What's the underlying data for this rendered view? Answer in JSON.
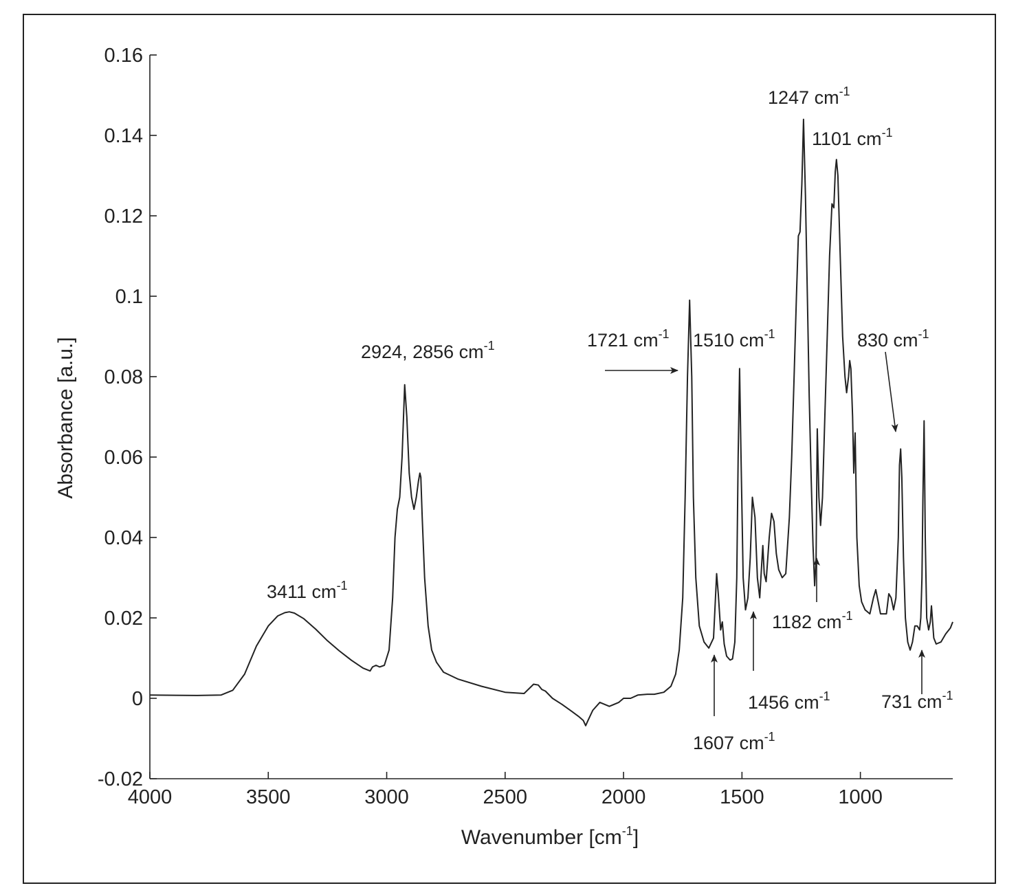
{
  "chart_data": {
    "type": "line",
    "xlabel": "Wavenumber [cm",
    "xlabel_sup": "-1",
    "xlabel_suffix": "]",
    "ylabel": "Absorbance [a.u.]",
    "xlim": [
      4000,
      610
    ],
    "ylim": [
      -0.02,
      0.16
    ],
    "x_reversed": true,
    "grid": false,
    "line_color": "#222222",
    "x_ticks": [
      4000,
      3500,
      3000,
      2500,
      2000,
      1500,
      1000
    ],
    "x_tick_labels": [
      "4000",
      "3500",
      "3000",
      "2500",
      "2000",
      "1500",
      "1000"
    ],
    "y_ticks": [
      -0.02,
      0,
      0.02,
      0.04,
      0.06,
      0.08,
      0.1,
      0.12,
      0.14,
      0.16
    ],
    "y_tick_labels": [
      "-0.02",
      "0",
      "0.02",
      "0.04",
      "0.06",
      "0.08",
      "0.1",
      "0.12",
      "0.14",
      "0.16"
    ],
    "series": [
      {
        "x": [
          4000,
          3800,
          3700,
          3650,
          3600,
          3550,
          3500,
          3460,
          3430,
          3411,
          3390,
          3350,
          3300,
          3250,
          3200,
          3150,
          3100,
          3070,
          3060,
          3045,
          3030,
          3010,
          2990,
          2975,
          2965,
          2955,
          2945,
          2935,
          2924,
          2915,
          2905,
          2895,
          2885,
          2875,
          2866,
          2860,
          2856,
          2850,
          2840,
          2825,
          2810,
          2790,
          2760,
          2700,
          2600,
          2500,
          2420,
          2380,
          2360,
          2345,
          2330,
          2300,
          2260,
          2220,
          2190,
          2170,
          2160,
          2150,
          2130,
          2100,
          2060,
          2020,
          2000,
          1970,
          1940,
          1900,
          1870,
          1830,
          1800,
          1780,
          1765,
          1750,
          1740,
          1730,
          1721,
          1712,
          1705,
          1695,
          1680,
          1660,
          1640,
          1620,
          1607,
          1600,
          1590,
          1583,
          1575,
          1565,
          1550,
          1540,
          1530,
          1522,
          1516,
          1510,
          1504,
          1495,
          1485,
          1475,
          1465,
          1456,
          1445,
          1435,
          1425,
          1418,
          1412,
          1406,
          1398,
          1385,
          1375,
          1365,
          1355,
          1345,
          1330,
          1315,
          1300,
          1290,
          1280,
          1270,
          1262,
          1255,
          1247,
          1240,
          1232,
          1224,
          1216,
          1208,
          1200,
          1193,
          1187,
          1182,
          1175,
          1168,
          1160,
          1150,
          1140,
          1130,
          1120,
          1112,
          1106,
          1101,
          1095,
          1085,
          1075,
          1065,
          1058,
          1050,
          1045,
          1040,
          1033,
          1028,
          1022,
          1015,
          1005,
          995,
          980,
          960,
          945,
          935,
          925,
          915,
          905,
          890,
          880,
          870,
          860,
          850,
          840,
          835,
          830,
          825,
          818,
          810,
          800,
          790,
          780,
          770,
          760,
          750,
          745,
          740,
          736,
          731,
          726,
          720,
          712,
          705,
          700,
          695,
          690,
          680,
          660,
          640,
          620,
          610
        ],
        "y": [
          0.0008,
          0.0007,
          0.0008,
          0.002,
          0.006,
          0.013,
          0.018,
          0.0205,
          0.0213,
          0.0215,
          0.0212,
          0.0198,
          0.0172,
          0.0143,
          0.0118,
          0.0095,
          0.0075,
          0.0068,
          0.0078,
          0.0082,
          0.0078,
          0.0082,
          0.012,
          0.025,
          0.04,
          0.047,
          0.05,
          0.06,
          0.078,
          0.07,
          0.056,
          0.05,
          0.047,
          0.05,
          0.054,
          0.056,
          0.055,
          0.045,
          0.03,
          0.018,
          0.012,
          0.009,
          0.0065,
          0.0048,
          0.003,
          0.0015,
          0.0012,
          0.0035,
          0.0033,
          0.0022,
          0.0018,
          0.0,
          -0.0015,
          -0.0032,
          -0.0045,
          -0.0055,
          -0.0068,
          -0.0055,
          -0.003,
          -0.001,
          -0.002,
          -0.001,
          0.0,
          0.0,
          0.0008,
          0.001,
          0.001,
          0.0015,
          0.003,
          0.006,
          0.012,
          0.025,
          0.05,
          0.08,
          0.099,
          0.08,
          0.05,
          0.03,
          0.018,
          0.014,
          0.0125,
          0.015,
          0.031,
          0.026,
          0.017,
          0.019,
          0.0135,
          0.0105,
          0.0095,
          0.0098,
          0.014,
          0.03,
          0.06,
          0.082,
          0.06,
          0.03,
          0.022,
          0.025,
          0.035,
          0.05,
          0.045,
          0.03,
          0.025,
          0.032,
          0.038,
          0.031,
          0.029,
          0.04,
          0.046,
          0.044,
          0.036,
          0.032,
          0.03,
          0.031,
          0.045,
          0.06,
          0.08,
          0.1,
          0.115,
          0.116,
          0.128,
          0.144,
          0.125,
          0.1,
          0.075,
          0.055,
          0.038,
          0.028,
          0.035,
          0.067,
          0.05,
          0.043,
          0.05,
          0.07,
          0.09,
          0.11,
          0.123,
          0.122,
          0.131,
          0.134,
          0.13,
          0.11,
          0.09,
          0.08,
          0.076,
          0.08,
          0.084,
          0.082,
          0.07,
          0.056,
          0.066,
          0.04,
          0.028,
          0.024,
          0.022,
          0.021,
          0.025,
          0.027,
          0.024,
          0.021,
          0.021,
          0.021,
          0.026,
          0.025,
          0.022,
          0.025,
          0.04,
          0.058,
          0.062,
          0.055,
          0.035,
          0.02,
          0.014,
          0.012,
          0.014,
          0.018,
          0.018,
          0.017,
          0.02,
          0.03,
          0.05,
          0.069,
          0.04,
          0.02,
          0.017,
          0.019,
          0.023,
          0.019,
          0.015,
          0.0135,
          0.014,
          0.016,
          0.0175,
          0.019
        ]
      }
    ],
    "annotations": [
      {
        "text": "3411 cm",
        "sup": "-1",
        "wavenumber": 3411
      },
      {
        "text": "2924, 2856 cm",
        "sup": "-1",
        "wavenumber": 2924
      },
      {
        "text": "1721 cm",
        "sup": "-1",
        "wavenumber": 1721
      },
      {
        "text": "1510 cm",
        "sup": "-1",
        "wavenumber": 1510
      },
      {
        "text": "1247 cm",
        "sup": "-1",
        "wavenumber": 1247
      },
      {
        "text": "1101 cm",
        "sup": "-1",
        "wavenumber": 1101
      },
      {
        "text": "830 cm",
        "sup": "-1",
        "wavenumber": 830
      },
      {
        "text": "1182 cm",
        "sup": "-1",
        "wavenumber": 1182
      },
      {
        "text": "1456 cm",
        "sup": "-1",
        "wavenumber": 1456
      },
      {
        "text": "1607 cm",
        "sup": "-1",
        "wavenumber": 1607
      },
      {
        "text": "731 cm",
        "sup": "-1",
        "wavenumber": 731
      }
    ]
  }
}
